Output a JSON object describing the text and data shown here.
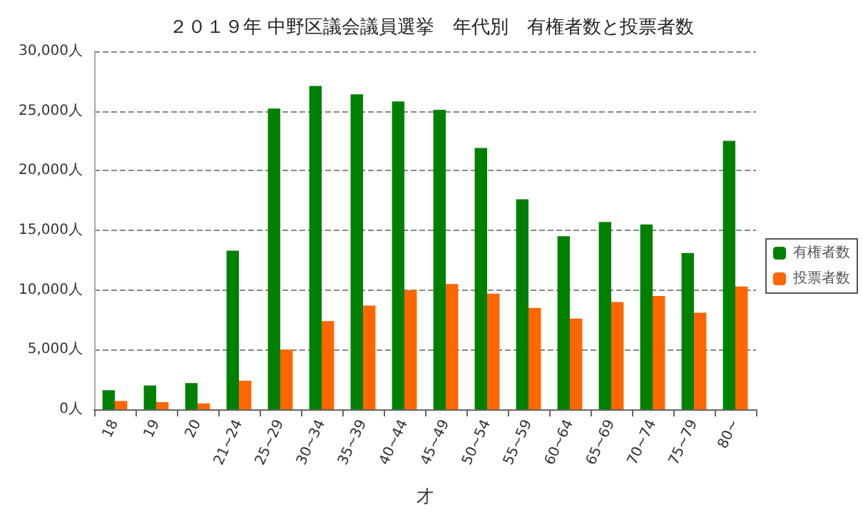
{
  "chart_data": {
    "type": "bar",
    "title": "２０１９年 中野区議会議員選挙　年代別　有権者数と投票者数",
    "xlabel": "才",
    "categories": [
      "18",
      "19",
      "20",
      "21~24",
      "25~29",
      "30~34",
      "35~39",
      "40~44",
      "45~49",
      "50~54",
      "55~59",
      "60~64",
      "65~69",
      "70~74",
      "75~79",
      "80~"
    ],
    "series": [
      {
        "name": "有権者数",
        "color": "#008000",
        "values": [
          1600,
          2000,
          2200,
          13300,
          25200,
          27100,
          26400,
          25800,
          25100,
          21900,
          17600,
          14500,
          15700,
          15500,
          13100,
          22500
        ]
      },
      {
        "name": "投票者数",
        "color": "#ff6600",
        "values": [
          700,
          600,
          500,
          2400,
          5000,
          7400,
          8700,
          10000,
          10500,
          9700,
          8500,
          7600,
          9000,
          9500,
          8100,
          10300
        ]
      }
    ],
    "ylim": [
      0,
      30000
    ],
    "yticks": [
      {
        "value": 0,
        "label": "0人"
      },
      {
        "value": 5000,
        "label": "5,000人"
      },
      {
        "value": 10000,
        "label": "10,000人"
      },
      {
        "value": 15000,
        "label": "15,000人"
      },
      {
        "value": 20000,
        "label": "20,000人"
      },
      {
        "value": 25000,
        "label": "25,000人"
      },
      {
        "value": 30000,
        "label": "30,000人"
      }
    ],
    "grid": "y",
    "legend": "right"
  }
}
